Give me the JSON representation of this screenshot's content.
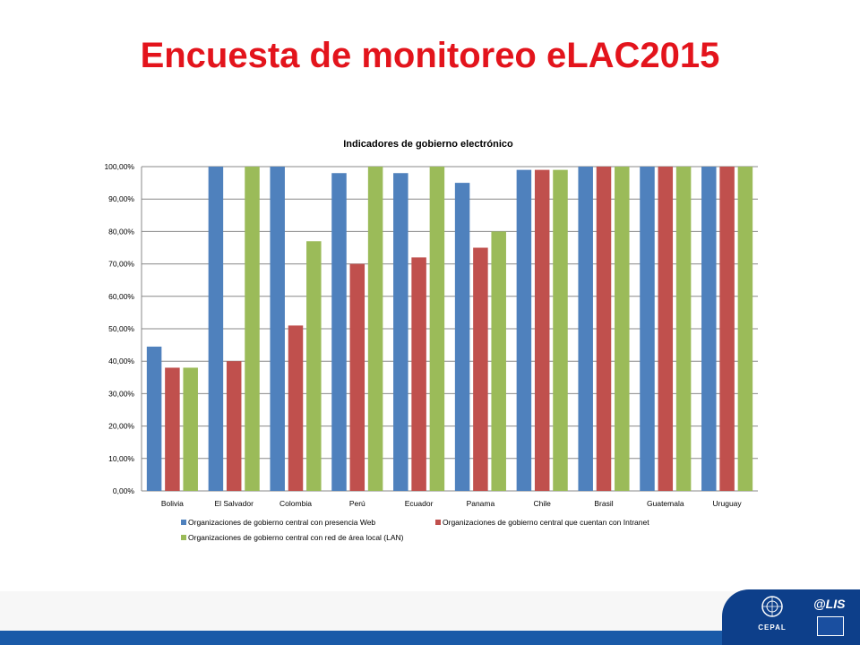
{
  "slide": {
    "title": "Encuesta de monitoreo eLAC2015",
    "logos": {
      "left_icon": "un-emblem-icon",
      "left_text": "CEPAL",
      "right_text": "@LIS",
      "right_icon": "eu-flag-icon"
    }
  },
  "chart_data": {
    "type": "bar",
    "title": "Indicadores de gobierno electrónico",
    "xlabel": "",
    "ylabel": "",
    "categories": [
      "Bolivia",
      "El Salvador",
      "Colombia",
      "Perú",
      "Ecuador",
      "Panama",
      "Chile",
      "Brasil",
      "Guatemala",
      "Uruguay"
    ],
    "series": [
      {
        "name": "Organizaciones de gobierno central con presencia Web",
        "color": "#4f81bd",
        "values": [
          44.5,
          100,
          100,
          98,
          98,
          95,
          99,
          100,
          100,
          100
        ]
      },
      {
        "name": "Organizaciones de gobierno central que cuentan con Intranet",
        "color": "#c0504d",
        "values": [
          38,
          40,
          51,
          70,
          72,
          75,
          99,
          100,
          100,
          100
        ]
      },
      {
        "name": "Organizaciones de gobierno central con red de área local (LAN)",
        "color": "#9bbb59",
        "values": [
          38,
          100,
          77,
          100,
          100,
          80,
          99,
          100,
          100,
          100
        ]
      }
    ],
    "ylim": [
      0,
      100
    ],
    "yticks": [
      "0,00%",
      "10,00%",
      "20,00%",
      "30,00%",
      "40,00%",
      "50,00%",
      "60,00%",
      "70,00%",
      "80,00%",
      "90,00%",
      "100,00%"
    ],
    "grid": true,
    "legend": "bottom"
  }
}
